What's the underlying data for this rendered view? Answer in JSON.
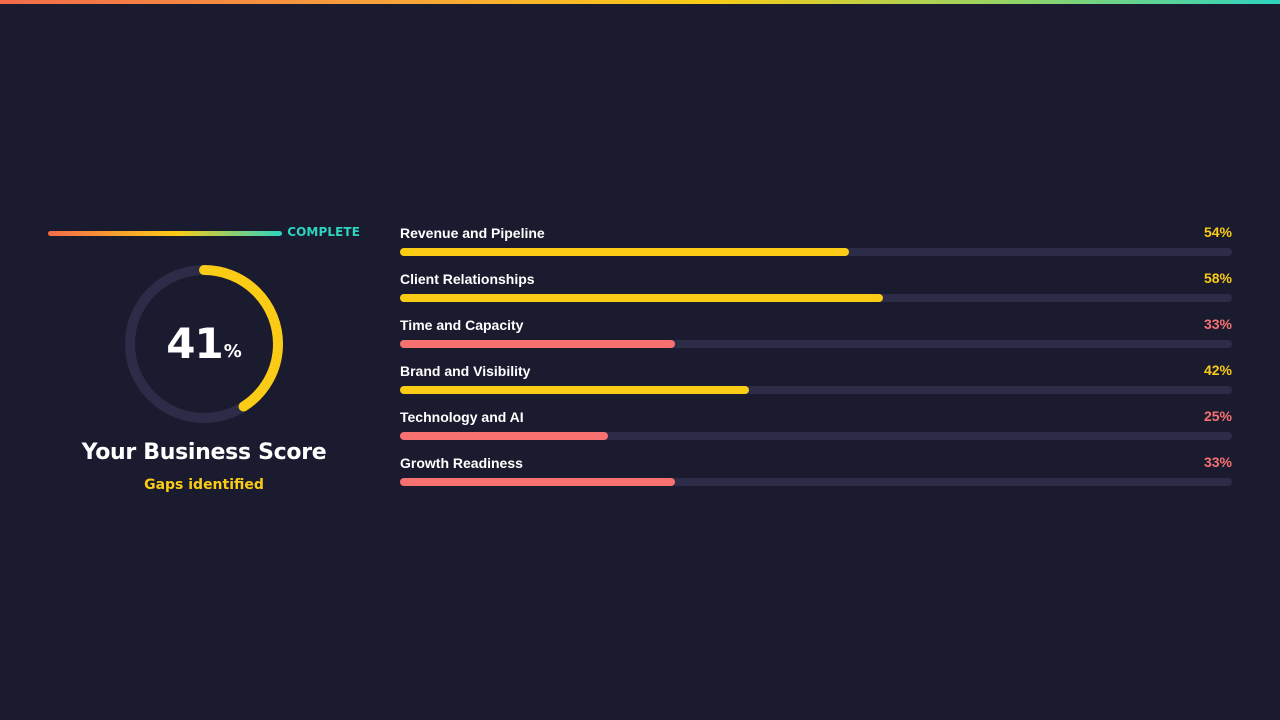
{
  "header": {
    "stripe_colors": [
      "#f26b4a",
      "#f7a23a",
      "#facc15",
      "#8fd46a",
      "#2dd4bf"
    ]
  },
  "progress": {
    "label": "COMPLETE",
    "fraction": 1.0,
    "color": "#2dd4bf"
  },
  "score": {
    "value": "41",
    "unit": "%",
    "fraction": 0.41,
    "title": "Your Business Score",
    "subtitle": "Gaps identified",
    "arc_color": "#facc15",
    "track_color": "#2c2c48"
  },
  "colors": {
    "strong": "#facc15",
    "weak": "#f87171",
    "track": "#2c2c48"
  },
  "categories": [
    {
      "name": "Revenue and Pipeline",
      "pct_label": "54%",
      "value": 54,
      "status": "strong"
    },
    {
      "name": "Client Relationships",
      "pct_label": "58%",
      "value": 58,
      "status": "strong"
    },
    {
      "name": "Time and Capacity",
      "pct_label": "33%",
      "value": 33,
      "status": "weak"
    },
    {
      "name": "Brand and Visibility",
      "pct_label": "42%",
      "value": 42,
      "status": "strong"
    },
    {
      "name": "Technology and AI",
      "pct_label": "25%",
      "value": 25,
      "status": "weak"
    },
    {
      "name": "Growth Readiness",
      "pct_label": "33%",
      "value": 33,
      "status": "weak"
    }
  ]
}
